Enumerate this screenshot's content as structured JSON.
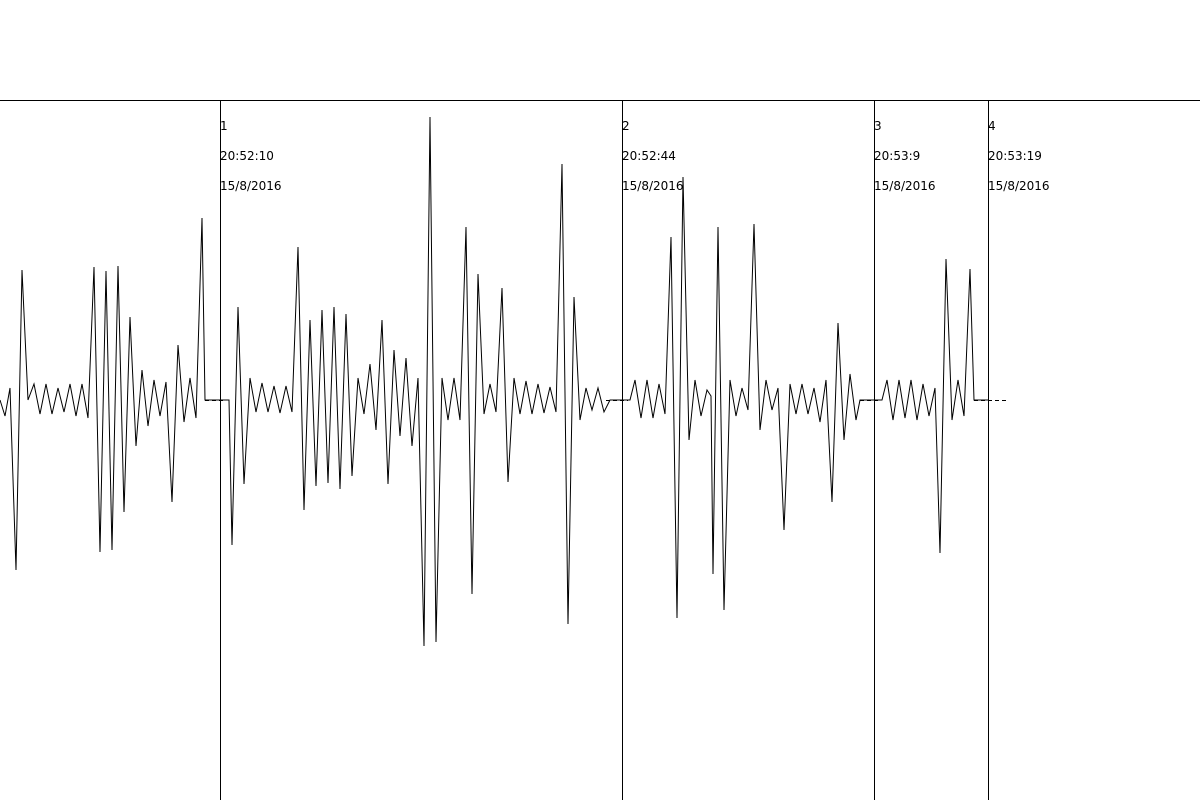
{
  "colors": {
    "background": "#ffffff",
    "trace": "#000000",
    "marker_line": "#000000",
    "axis_line": "#000000"
  },
  "markers": [
    {
      "id": "1",
      "time": "20:52:10",
      "date": "15/8/2016"
    },
    {
      "id": "2",
      "time": "20:52:44",
      "date": "15/8/2016"
    },
    {
      "id": "3",
      "time": "20:53:9",
      "date": "15/8/2016"
    },
    {
      "id": "4",
      "time": "20:53:19",
      "date": "15/8/2016"
    }
  ]
}
